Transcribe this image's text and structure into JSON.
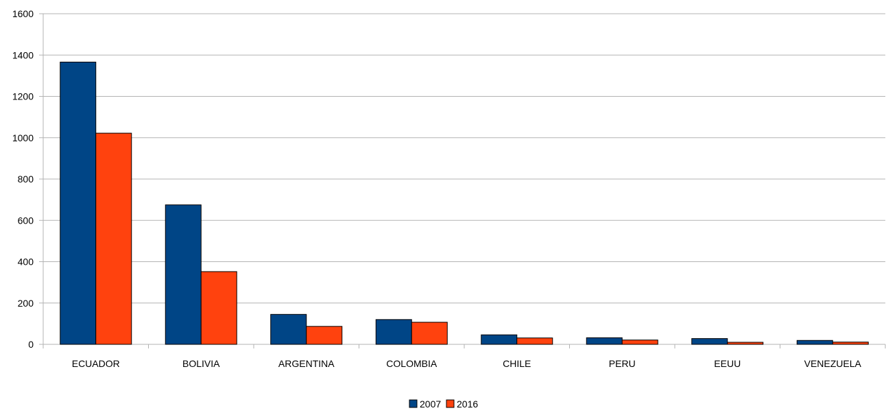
{
  "chart_data": {
    "type": "bar",
    "categories": [
      "ECUADOR",
      "BOLIVIA",
      "ARGENTINA",
      "COLOMBIA",
      "CHILE",
      "PERU",
      "EEUU",
      "VENEZUELA"
    ],
    "series": [
      {
        "name": "2007",
        "color": "#004586",
        "values": [
          1366,
          675,
          145,
          120,
          46,
          32,
          28,
          19
        ]
      },
      {
        "name": "2016",
        "color": "#ff420e",
        "values": [
          1022,
          352,
          87,
          107,
          31,
          21,
          10,
          11
        ]
      }
    ],
    "yticks": [
      "0",
      "200",
      "400",
      "600",
      "800",
      "1000",
      "1200",
      "1400",
      "1600"
    ],
    "ylim": [
      0,
      1600
    ],
    "grid": true,
    "legend_position": "bottom-center",
    "title": "",
    "xlabel": "",
    "ylabel": ""
  }
}
